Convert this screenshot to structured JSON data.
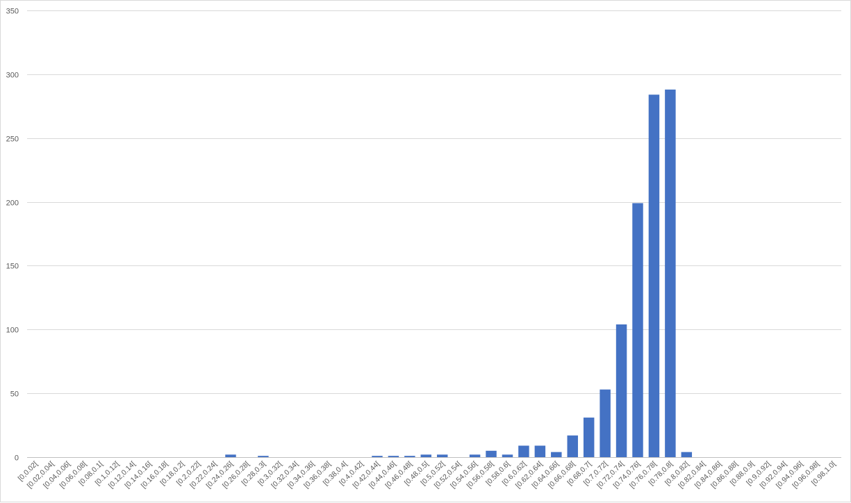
{
  "chart_data": {
    "type": "bar",
    "title": "",
    "xlabel": "",
    "ylabel": "",
    "ylim": [
      0,
      350
    ],
    "yticks": [
      0,
      50,
      100,
      150,
      200,
      250,
      300,
      350
    ],
    "grid": true,
    "legend": "none",
    "bar_color": "#4472C4",
    "categories": [
      "[0,0.02[",
      "[0.02,0.04[",
      "[0.04,0.06[",
      "[0.06,0.08[",
      "[0.08,0.1[",
      "[0.1,0.12[",
      "[0.12,0.14[",
      "[0.14,0.16[",
      "[0.16,0.18[",
      "[0.18,0.2[",
      "[0.2,0.22[",
      "[0.22,0.24[",
      "[0.24,0.26[",
      "[0.26,0.28[",
      "[0.28,0.3[",
      "[0.3,0.32[",
      "[0.32,0.34[",
      "[0.34,0.36[",
      "[0.36,0.38[",
      "[0.38,0.4[",
      "[0.4,0.42[",
      "[0.42,0.44[",
      "[0.44,0.46[",
      "[0.46,0.48[",
      "[0.48,0.5[",
      "[0.5,0.52[",
      "[0.52,0.54[",
      "[0.54,0.56[",
      "[0.56,0.58[",
      "[0.58,0.6[",
      "[0.6,0.62[",
      "[0.62,0.64[",
      "[0.64,0.66[",
      "[0.66,0.68[",
      "[0.68,0.7[",
      "[0.7,0.72[",
      "[0.72,0.74[",
      "[0.74,0.76[",
      "[0.76,0.78[",
      "[0.78,0.8[",
      "[0.8,0.82[",
      "[0.82,0.84[",
      "[0.84,0.86[",
      "[0.86,0.88[",
      "[0.88,0.9[",
      "[0.9,0.92[",
      "[0.92,0.94[",
      "[0.94,0.96[",
      "[0.96,0.98[",
      "[0.98,1.0["
    ],
    "values": [
      0,
      0,
      0,
      0,
      0,
      0,
      0,
      0,
      0,
      0,
      0,
      0,
      2,
      0,
      1,
      0,
      0,
      0,
      0,
      0,
      0,
      1,
      1,
      1,
      2,
      2,
      0,
      2,
      5,
      2,
      9,
      9,
      4,
      17,
      31,
      53,
      104,
      199,
      284,
      288,
      4,
      0,
      0,
      0,
      0,
      0,
      0,
      0,
      0,
      0
    ]
  }
}
